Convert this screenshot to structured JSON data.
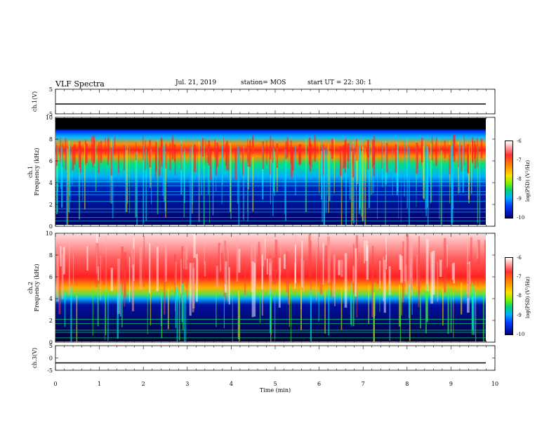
{
  "header": {
    "title": "VLF Spectra",
    "date": "Jul. 21, 2019",
    "station": "station= MOS",
    "start": "start UT =  22: 30: 1"
  },
  "colorbars": [
    {
      "ticks": [
        "-6",
        "-7",
        "-8",
        "-9",
        "-10"
      ],
      "label": "log(PSD) (V²/Hz)"
    },
    {
      "ticks": [
        "-6",
        "-7",
        "-8",
        "-9",
        "-10"
      ],
      "label": "log(PSD) (V²/Hz)"
    }
  ],
  "colors": {
    "spectrum_hot": "#ff2020",
    "spectrum_mid": "#ffe000",
    "spectrum_low": "#00ff80",
    "background_dark": "#000030"
  },
  "chart_data": [
    {
      "type": "line",
      "panel": "ch1-waveform",
      "ylabel": "ch.1(V)",
      "ylim": [
        -5,
        5
      ],
      "yticks": [
        "5",
        "-5"
      ],
      "series": [
        {
          "x": [
            0,
            10
          ],
          "values": [
            -1,
            -1
          ]
        }
      ]
    },
    {
      "type": "heatmap",
      "panel": "ch1-spectrogram",
      "ylabel": "ch.1\nFrequency (kHz)",
      "ylim": [
        0,
        10
      ],
      "yticks": [
        "0",
        "2",
        "4",
        "6",
        "8",
        "10"
      ],
      "color_range": [
        -10,
        -6
      ],
      "note_bands": {
        "saturated_black_above_khz": 9.3,
        "emission_peak_khz": 6.8
      }
    },
    {
      "type": "heatmap",
      "panel": "ch2-spectrogram",
      "ylabel": "ch.2\nFrequency (kHz)",
      "ylim": [
        0,
        10
      ],
      "yticks": [
        "0",
        "2",
        "4",
        "6",
        "8",
        "10"
      ],
      "color_range": [
        -10,
        -6
      ]
    },
    {
      "type": "line",
      "panel": "ch3-waveform",
      "ylabel": "ch.3(V)",
      "ylim": [
        -5,
        5
      ],
      "yticks": [
        "5",
        "0",
        "-5"
      ],
      "xlabel": "Time (min)",
      "xlim": [
        0,
        10
      ],
      "xticks": [
        "0",
        "1",
        "2",
        "3",
        "4",
        "5",
        "6",
        "7",
        "8",
        "9",
        "10"
      ],
      "series": [
        {
          "x": [
            0,
            10
          ],
          "values": [
            -2,
            -2
          ]
        }
      ]
    }
  ]
}
